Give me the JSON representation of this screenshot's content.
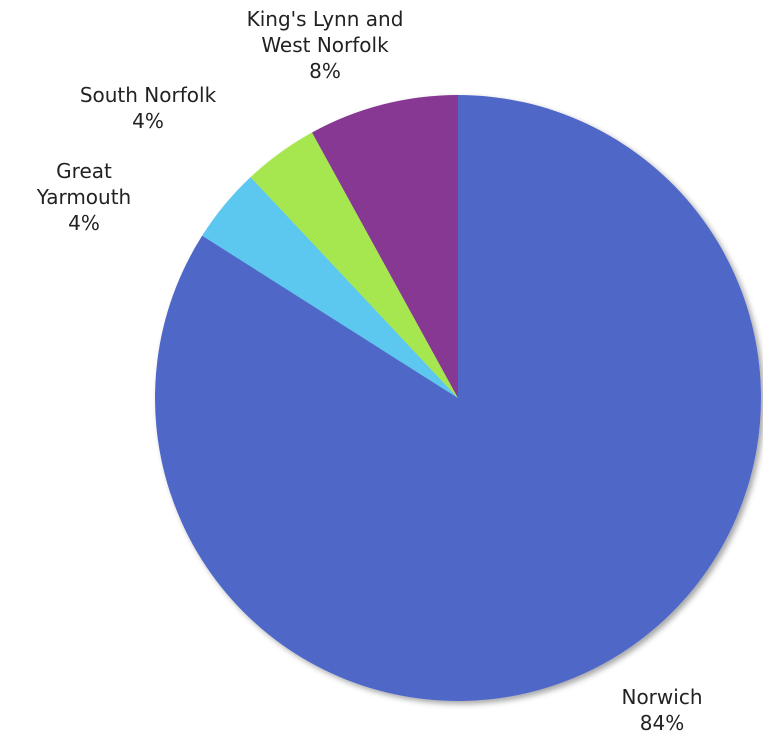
{
  "chart_data": {
    "type": "pie",
    "slices": [
      {
        "name": "Norwich",
        "value": 84,
        "label_lines": [
          "Norwich",
          "84%"
        ],
        "color": "#5068c8"
      },
      {
        "name": "Great Yarmouth",
        "value": 4,
        "label_lines": [
          "Great",
          "Yarmouth",
          "4%"
        ],
        "color": "#5bc8f0"
      },
      {
        "name": "South Norfolk",
        "value": 4,
        "label_lines": [
          "South Norfolk",
          "4%"
        ],
        "color": "#a6e650"
      },
      {
        "name": "King's Lynn and West Norfolk",
        "value": 8,
        "label_lines": [
          "King's Lynn and",
          "West Norfolk",
          "8%"
        ],
        "color": "#873892"
      }
    ],
    "start_angle_deg": 0,
    "direction": "clockwise"
  }
}
